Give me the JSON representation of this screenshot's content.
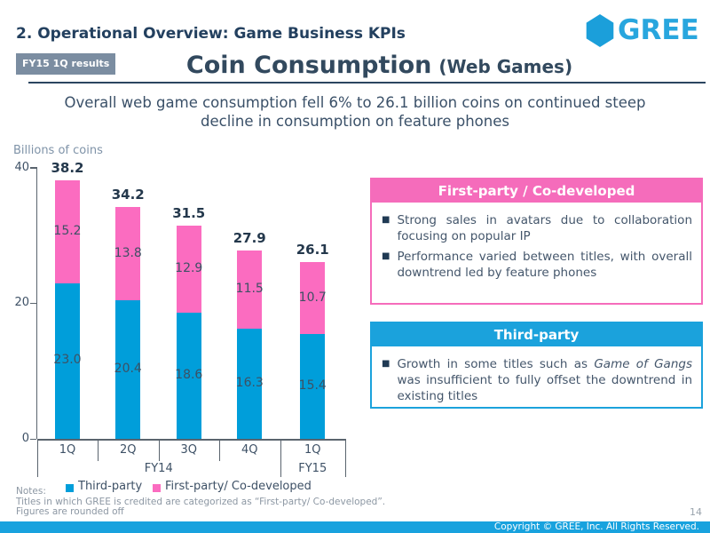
{
  "header": {
    "section_title": "2. Operational Overview: Game Business KPIs",
    "badge": "FY15 1Q results",
    "slide_title": "Coin Consumption",
    "slide_title_suffix": "(Web Games)",
    "logo_text": "GREE",
    "brand_blue": "#28a6de",
    "title_navy": "#2b4560"
  },
  "headline": {
    "line1": "Overall web game consumption fell 6% to 26.1 billion coins on continued steep",
    "line2": "decline in consumption on feature phones"
  },
  "chart_data": {
    "type": "bar",
    "stacked": true,
    "unit_label": "Billions of coins",
    "categories": [
      "1Q",
      "2Q",
      "3Q",
      "4Q",
      "1Q"
    ],
    "category_groups": [
      {
        "label": "FY14",
        "span": 4
      },
      {
        "label": "FY15",
        "span": 1
      }
    ],
    "series": [
      {
        "name": "Third-party",
        "color": "#009eda",
        "values": [
          23.0,
          20.4,
          18.6,
          16.3,
          15.4
        ]
      },
      {
        "name": "First-party/ Co-developed",
        "color": "#fb6cc0",
        "values": [
          15.2,
          13.8,
          12.9,
          11.5,
          10.7
        ]
      }
    ],
    "totals": [
      38.2,
      34.2,
      31.5,
      27.9,
      26.1
    ],
    "ylim": [
      0,
      40
    ],
    "yticks": [
      0,
      20,
      40
    ],
    "grid": false,
    "legend_position": "bottom"
  },
  "callouts": [
    {
      "title": "First-party / Co-developed",
      "accent_color": "#f56cbb",
      "bullets": [
        [
          {
            "text": "Strong sales in avatars due to collaboration focusing on popular IP"
          }
        ],
        [
          {
            "text": "Performance varied between titles, with overall downtrend led by feature phones"
          }
        ]
      ]
    },
    {
      "title": "Third-party",
      "accent_color": "#1ba2dc",
      "bullets": [
        [
          {
            "text": "Growth in some titles such as "
          },
          {
            "text": "Game of Gangs",
            "italic": true
          },
          {
            "text": " was insufficient to fully offset the downtrend in existing titles"
          }
        ]
      ]
    }
  ],
  "notes": {
    "label": "Notes:",
    "lines": [
      "Titles in which GREE is credited are categorized as “First-party/ Co-developed”.",
      "Figures are rounded off"
    ]
  },
  "footer": {
    "page_number": "14",
    "copyright": "Copyright © GREE, Inc. All Rights Reserved."
  }
}
